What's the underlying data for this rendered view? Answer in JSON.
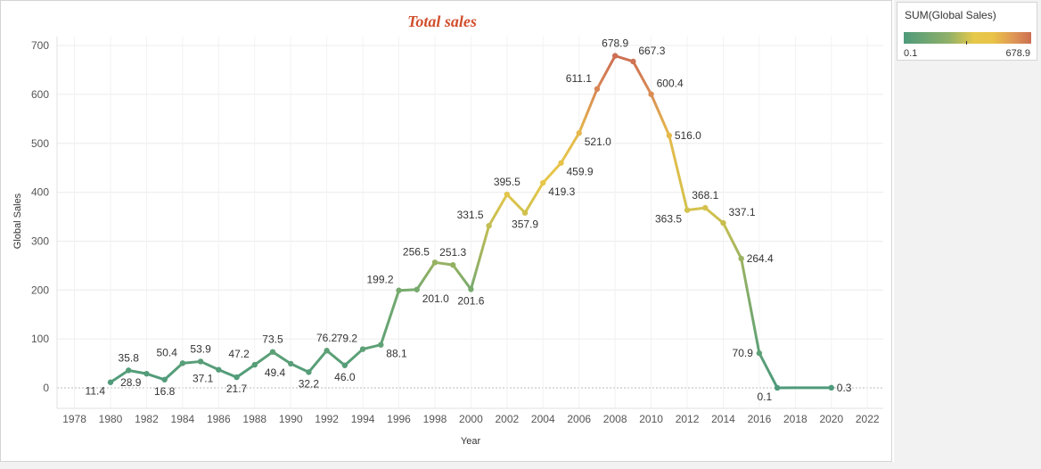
{
  "legend": {
    "title": "SUM(Global Sales)",
    "min_label": "0.1",
    "max_label": "678.9",
    "color_low": "#4e9a7b",
    "color_mid": "#e6c84a",
    "color_high": "#cc6f52"
  },
  "chart_data": {
    "type": "line",
    "title": "Total sales",
    "xlabel": "Year",
    "ylabel": "Global Sales",
    "xlim": [
      1977,
      2023
    ],
    "ylim": [
      -40,
      710
    ],
    "x_ticks": [
      1978,
      1980,
      1982,
      1984,
      1986,
      1988,
      1990,
      1992,
      1994,
      1996,
      1998,
      2000,
      2002,
      2004,
      2006,
      2008,
      2010,
      2012,
      2014,
      2016,
      2018,
      2020,
      2022
    ],
    "y_ticks": [
      0,
      100,
      200,
      300,
      400,
      500,
      600,
      700
    ],
    "grid": true,
    "title_color": "#d14f2e",
    "points": [
      {
        "x": 1980,
        "y": 11.4,
        "label": "11.4",
        "pos": "bottom-left"
      },
      {
        "x": 1981,
        "y": 35.8,
        "label": "35.8",
        "pos": "top"
      },
      {
        "x": 1982,
        "y": 28.9,
        "label": "28.9",
        "pos": "bottom-left"
      },
      {
        "x": 1983,
        "y": 16.8,
        "label": "16.8",
        "pos": "bottom"
      },
      {
        "x": 1984,
        "y": 50.4,
        "label": "50.4",
        "pos": "top-left"
      },
      {
        "x": 1985,
        "y": 53.9,
        "label": "53.9",
        "pos": "top"
      },
      {
        "x": 1986,
        "y": 37.1,
        "label": "37.1",
        "pos": "bottom-left"
      },
      {
        "x": 1987,
        "y": 21.7,
        "label": "21.7",
        "pos": "bottom"
      },
      {
        "x": 1988,
        "y": 47.2,
        "label": "47.2",
        "pos": "top-left"
      },
      {
        "x": 1989,
        "y": 73.5,
        "label": "73.5",
        "pos": "top"
      },
      {
        "x": 1990,
        "y": 49.4,
        "label": "49.4",
        "pos": "bottom-left"
      },
      {
        "x": 1991,
        "y": 32.2,
        "label": "32.2",
        "pos": "bottom"
      },
      {
        "x": 1992,
        "y": 76.2,
        "label": "76.2",
        "pos": "top"
      },
      {
        "x": 1993,
        "y": 46.0,
        "label": "46.0",
        "pos": "bottom"
      },
      {
        "x": 1994,
        "y": 79.2,
        "label": "79.2",
        "pos": "top-left"
      },
      {
        "x": 1995,
        "y": 88.1,
        "label": "88.1",
        "pos": "bottom-right"
      },
      {
        "x": 1996,
        "y": 199.2,
        "label": "199.2",
        "pos": "top-left"
      },
      {
        "x": 1997,
        "y": 201.0,
        "label": "201.0",
        "pos": "bottom-right"
      },
      {
        "x": 1998,
        "y": 256.5,
        "label": "256.5",
        "pos": "top-left"
      },
      {
        "x": 1999,
        "y": 251.3,
        "label": "251.3",
        "pos": "top"
      },
      {
        "x": 2000,
        "y": 201.6,
        "label": "201.6",
        "pos": "bottom"
      },
      {
        "x": 2001,
        "y": 331.5,
        "label": "331.5",
        "pos": "top-left"
      },
      {
        "x": 2002,
        "y": 395.5,
        "label": "395.5",
        "pos": "top"
      },
      {
        "x": 2003,
        "y": 357.9,
        "label": "357.9",
        "pos": "bottom"
      },
      {
        "x": 2004,
        "y": 419.3,
        "label": "419.3",
        "pos": "bottom-right"
      },
      {
        "x": 2005,
        "y": 459.9,
        "label": "459.9",
        "pos": "bottom-right"
      },
      {
        "x": 2006,
        "y": 521.0,
        "label": "521.0",
        "pos": "bottom-right"
      },
      {
        "x": 2007,
        "y": 611.1,
        "label": "611.1",
        "pos": "top-left"
      },
      {
        "x": 2008,
        "y": 678.9,
        "label": "678.9",
        "pos": "top"
      },
      {
        "x": 2009,
        "y": 667.3,
        "label": "667.3",
        "pos": "top-right"
      },
      {
        "x": 2010,
        "y": 600.4,
        "label": "600.4",
        "pos": "top-right"
      },
      {
        "x": 2011,
        "y": 516.0,
        "label": "516.0",
        "pos": "right"
      },
      {
        "x": 2012,
        "y": 363.5,
        "label": "363.5",
        "pos": "bottom-left"
      },
      {
        "x": 2013,
        "y": 368.1,
        "label": "368.1",
        "pos": "top"
      },
      {
        "x": 2014,
        "y": 337.1,
        "label": "337.1",
        "pos": "top-right"
      },
      {
        "x": 2015,
        "y": 264.4,
        "label": "264.4",
        "pos": "right"
      },
      {
        "x": 2016,
        "y": 70.9,
        "label": "70.9",
        "pos": "left"
      },
      {
        "x": 2017,
        "y": 0.1,
        "label": "0.1",
        "pos": "bottom-left"
      },
      {
        "x": 2020,
        "y": 0.3,
        "label": "0.3",
        "pos": "right"
      }
    ]
  }
}
